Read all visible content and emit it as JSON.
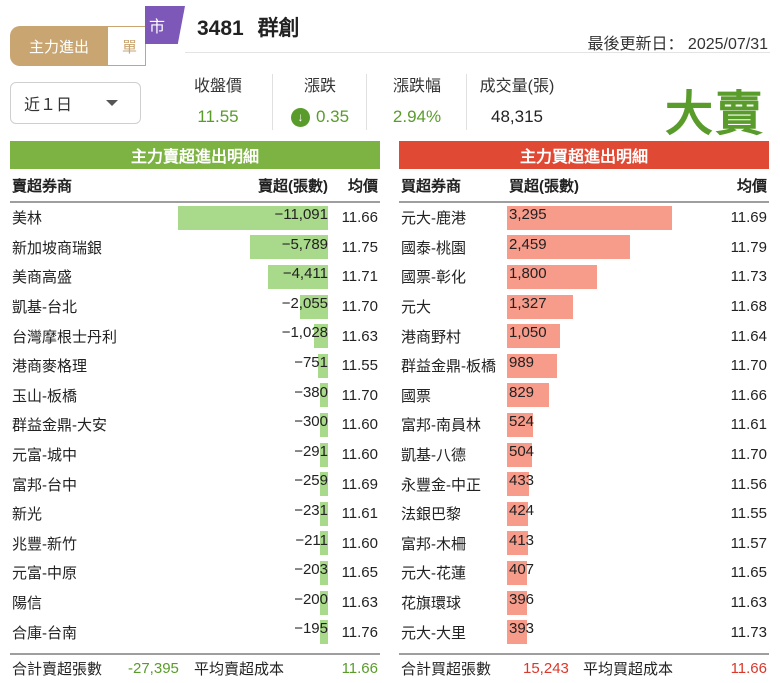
{
  "tabs": [
    {
      "label": "主力進出"
    },
    {
      "label": "單"
    }
  ],
  "period": {
    "selected": "近１日"
  },
  "header": {
    "market_badge": "市",
    "stock_code": "3481",
    "stock_name": "群創",
    "updated_label": "最後更新日：",
    "updated_date": "2025/07/31"
  },
  "quote": {
    "close_label": "收盤價",
    "close": "11.55",
    "change_label": "漲跌",
    "change": "0.35",
    "change_pct_label": "漲跌幅",
    "change_pct": "2.94%",
    "volume_label": "成交量(張)",
    "volume": "48,315"
  },
  "verdict": "大賣",
  "colors": {
    "buy_accent": "#e04a35",
    "sell_accent": "#7cb342",
    "sell_bar": "#a9d98a",
    "buy_bar": "#f79b8a",
    "brand_tab": "#c8a571",
    "market_badge": "#7d58b8"
  },
  "sell_table": {
    "title": "主力賣超進出明細",
    "headers": {
      "broker": "賣超券商",
      "net": "賣超(張數)",
      "avg": "均價"
    },
    "rows": [
      {
        "broker": "美林",
        "net": "−11,091",
        "amount": 11091,
        "avg": "11.66"
      },
      {
        "broker": "新加坡商瑞銀",
        "net": "−5,789",
        "amount": 5789,
        "avg": "11.75"
      },
      {
        "broker": "美商高盛",
        "net": "−4,411",
        "amount": 4411,
        "avg": "11.71"
      },
      {
        "broker": "凱基-台北",
        "net": "−2,055",
        "amount": 2055,
        "avg": "11.70"
      },
      {
        "broker": "台灣摩根士丹利",
        "net": "−1,028",
        "amount": 1028,
        "avg": "11.63"
      },
      {
        "broker": "港商麥格理",
        "net": "−751",
        "amount": 751,
        "avg": "11.55"
      },
      {
        "broker": "玉山-板橋",
        "net": "−380",
        "amount": 380,
        "avg": "11.70"
      },
      {
        "broker": "群益金鼎-大安",
        "net": "−300",
        "amount": 300,
        "avg": "11.60"
      },
      {
        "broker": "元富-城中",
        "net": "−291",
        "amount": 291,
        "avg": "11.60"
      },
      {
        "broker": "富邦-台中",
        "net": "−259",
        "amount": 259,
        "avg": "11.69"
      },
      {
        "broker": "新光",
        "net": "−231",
        "amount": 231,
        "avg": "11.61"
      },
      {
        "broker": "兆豐-新竹",
        "net": "−211",
        "amount": 211,
        "avg": "11.60"
      },
      {
        "broker": "元富-中原",
        "net": "−203",
        "amount": 203,
        "avg": "11.65"
      },
      {
        "broker": "陽信",
        "net": "−200",
        "amount": 200,
        "avg": "11.63"
      },
      {
        "broker": "合庫-台南",
        "net": "−195",
        "amount": 195,
        "avg": "11.76"
      }
    ],
    "total_label": "合計賣超張數",
    "total": "-27,395",
    "avg_cost_label": "平均賣超成本",
    "avg_cost": "11.66"
  },
  "buy_table": {
    "title": "主力買超進出明細",
    "headers": {
      "broker": "買超券商",
      "net": "買超(張數)",
      "avg": "均價"
    },
    "rows": [
      {
        "broker": "元大-鹿港",
        "net": "3,295",
        "amount": 3295,
        "avg": "11.69"
      },
      {
        "broker": "國泰-桃園",
        "net": "2,459",
        "amount": 2459,
        "avg": "11.79"
      },
      {
        "broker": "國票-彰化",
        "net": "1,800",
        "amount": 1800,
        "avg": "11.73"
      },
      {
        "broker": "元大",
        "net": "1,327",
        "amount": 1327,
        "avg": "11.68"
      },
      {
        "broker": "港商野村",
        "net": "1,050",
        "amount": 1050,
        "avg": "11.64"
      },
      {
        "broker": "群益金鼎-板橋",
        "net": "989",
        "amount": 989,
        "avg": "11.70"
      },
      {
        "broker": "國票",
        "net": "829",
        "amount": 829,
        "avg": "11.66"
      },
      {
        "broker": "富邦-南員林",
        "net": "524",
        "amount": 524,
        "avg": "11.61"
      },
      {
        "broker": "凱基-八德",
        "net": "504",
        "amount": 504,
        "avg": "11.70"
      },
      {
        "broker": "永豐金-中正",
        "net": "433",
        "amount": 433,
        "avg": "11.56"
      },
      {
        "broker": "法銀巴黎",
        "net": "424",
        "amount": 424,
        "avg": "11.55"
      },
      {
        "broker": "富邦-木柵",
        "net": "413",
        "amount": 413,
        "avg": "11.57"
      },
      {
        "broker": "元大-花蓮",
        "net": "407",
        "amount": 407,
        "avg": "11.65"
      },
      {
        "broker": "花旗環球",
        "net": "396",
        "amount": 396,
        "avg": "11.63"
      },
      {
        "broker": "元大-大里",
        "net": "393",
        "amount": 393,
        "avg": "11.73"
      }
    ],
    "total_label": "合計買超張數",
    "total": "15,243",
    "avg_cost_label": "平均買超成本",
    "avg_cost": "11.66"
  }
}
